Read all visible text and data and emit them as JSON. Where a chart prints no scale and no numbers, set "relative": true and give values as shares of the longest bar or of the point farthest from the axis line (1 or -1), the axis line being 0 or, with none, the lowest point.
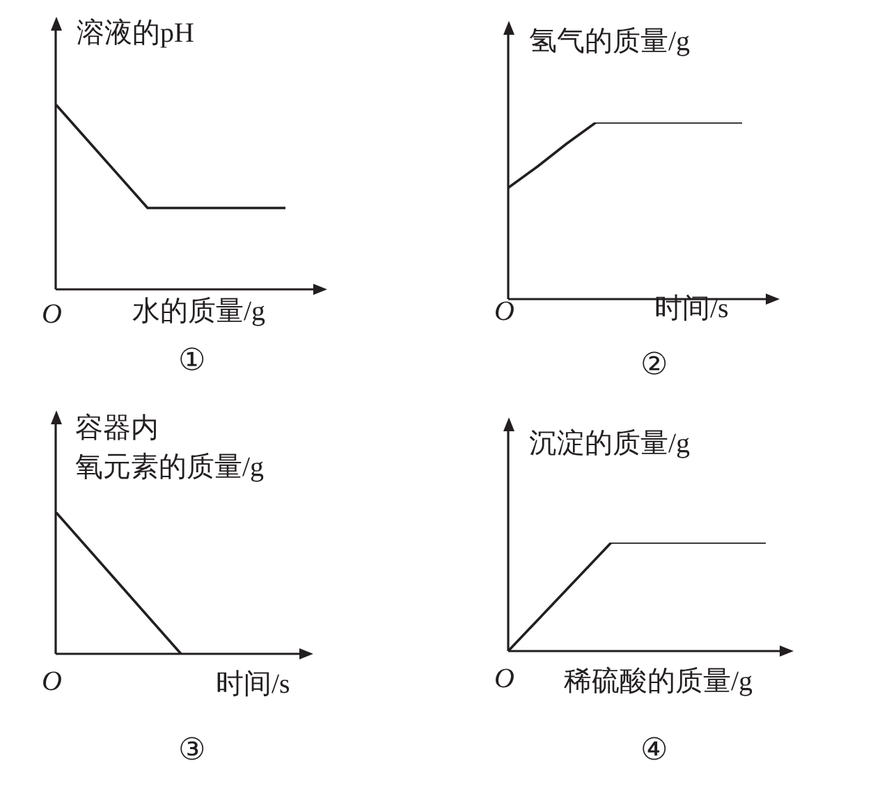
{
  "chart_data": [
    {
      "type": "line",
      "title": "①",
      "ylabel": "溶液的pH",
      "xlabel": "水的质量/g",
      "annotations": [
        "O"
      ],
      "relative": true,
      "marker": "none",
      "categories": [
        null,
        null,
        null,
        null,
        null,
        null
      ],
      "series": [
        {
          "color": "#231f20",
          "values": [
            1,
            0.72,
            0.44,
            0.44,
            0.44,
            0.44
          ]
        }
      ]
    },
    {
      "type": "line",
      "title": "②",
      "ylabel": "氢气的质量/g",
      "xlabel": "时间/s",
      "annotations": [
        "O"
      ],
      "relative": true,
      "marker": "none",
      "categories": [
        null,
        null,
        null,
        null,
        null,
        null,
        null,
        null,
        null
      ],
      "series": [
        {
          "color": "#231f20",
          "values": [
            0.63,
            0.75,
            0.88,
            1,
            1,
            1,
            1,
            1,
            1
          ]
        }
      ]
    },
    {
      "type": "line",
      "title": "③",
      "ylabel": "容器内氧元素的质量/g",
      "xlabel": "时间/s",
      "annotations": [
        "O"
      ],
      "relative": true,
      "marker": "none",
      "categories": [
        null,
        null,
        null
      ],
      "series": [
        {
          "color": "#231f20",
          "values": [
            1,
            0.5,
            0
          ]
        }
      ]
    },
    {
      "type": "line",
      "title": "④",
      "ylabel": "沉淀的质量/g",
      "xlabel": "稀硫酸的质量/g",
      "annotations": [
        "O"
      ],
      "relative": true,
      "marker": "none",
      "categories": [
        null,
        null,
        null,
        null,
        null,
        null
      ],
      "series": [
        {
          "color": "#231f20",
          "values": [
            0,
            0.5,
            1,
            1,
            1,
            1
          ]
        }
      ]
    }
  ]
}
